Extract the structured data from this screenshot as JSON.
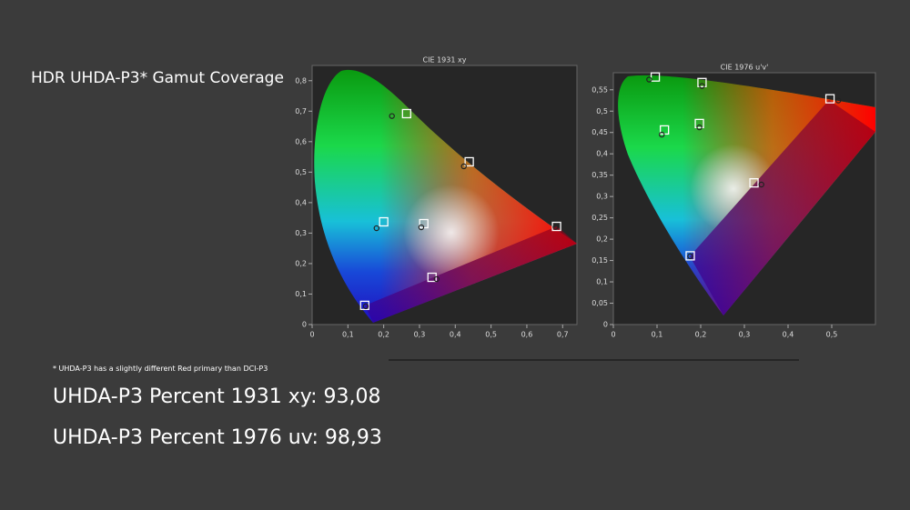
{
  "title": "HDR UHDA-P3* Gamut Coverage",
  "footnote": "* UHDA-P3 has a slightly different Red primary than DCI-P3",
  "results": [
    "UHDA-P3 Percent 1931 xy: 93,08",
    "UHDA-P3 Percent 1976 uv: 98,93"
  ],
  "chart_data": [
    {
      "type": "scatter",
      "title": "CIE 1931 xy",
      "xlim": [
        0,
        0.74
      ],
      "ylim": [
        0,
        0.85
      ],
      "xticks": [
        0,
        {
          "value": 0.1,
          "label": "0,1"
        },
        {
          "value": 0.2,
          "label": "0,2"
        },
        {
          "value": 0.3,
          "label": "0,3"
        },
        {
          "value": 0.4,
          "label": "0,4"
        },
        {
          "value": 0.5,
          "label": "0,5"
        },
        {
          "value": 0.6,
          "label": "0,6"
        },
        {
          "value": 0.7,
          "label": "0,7"
        }
      ],
      "yticks": [
        0,
        {
          "value": 0.1,
          "label": "0,1"
        },
        {
          "value": 0.2,
          "label": "0,2"
        },
        {
          "value": 0.3,
          "label": "0,3"
        },
        {
          "value": 0.4,
          "label": "0,4"
        },
        {
          "value": 0.5,
          "label": "0,5"
        },
        {
          "value": 0.6,
          "label": "0,6"
        },
        {
          "value": 0.7,
          "label": "0,7"
        },
        {
          "value": 0.8,
          "label": "0,8"
        }
      ],
      "series": [
        {
          "marker": "square",
          "color": "#ffffff",
          "x": [
            0.264,
            0.439,
            0.312,
            0.2,
            0.683,
            0.335,
            0.147
          ],
          "y": [
            0.692,
            0.534,
            0.331,
            0.337,
            0.322,
            0.155,
            0.063
          ]
        },
        {
          "marker": "circle",
          "color": "#222222",
          "x": [
            0.223,
            0.424,
            0.305,
            0.18,
            0.68,
            0.348,
            0.15
          ],
          "y": [
            0.684,
            0.519,
            0.319,
            0.316,
            0.32,
            0.149,
            0.06
          ]
        }
      ]
    },
    {
      "type": "scatter",
      "title": "CIE 1976 u'v'",
      "xlim": [
        0,
        0.6
      ],
      "ylim": [
        0,
        0.59
      ],
      "xticks": [
        0,
        {
          "value": 0.1,
          "label": "0,1"
        },
        {
          "value": 0.2,
          "label": "0,2"
        },
        {
          "value": 0.3,
          "label": "0,3"
        },
        {
          "value": 0.4,
          "label": "0,4"
        },
        {
          "value": 0.5,
          "label": "0,5"
        }
      ],
      "yticks": [
        0,
        {
          "value": 0.05,
          "label": "0,05"
        },
        {
          "value": 0.1,
          "label": "0,1"
        },
        {
          "value": 0.15,
          "label": "0,15"
        },
        {
          "value": 0.2,
          "label": "0,2"
        },
        {
          "value": 0.25,
          "label": "0,25"
        },
        {
          "value": 0.3,
          "label": "0,3"
        },
        {
          "value": 0.35,
          "label": "0,35"
        },
        {
          "value": 0.4,
          "label": "0,4"
        },
        {
          "value": 0.45,
          "label": "0,45"
        },
        {
          "value": 0.5,
          "label": "0,5"
        },
        {
          "value": 0.55,
          "label": "0,55"
        }
      ],
      "series": [
        {
          "marker": "square",
          "color": "#ffffff",
          "x": [
            0.096,
            0.203,
            0.197,
            0.117,
            0.496,
            0.322,
            0.176
          ],
          "y": [
            0.58,
            0.567,
            0.471,
            0.456,
            0.529,
            0.332,
            0.161
          ]
        },
        {
          "marker": "circle",
          "color": "#222222",
          "x": [
            0.082,
            0.203,
            0.197,
            0.111,
            0.515,
            0.339,
            0.176
          ],
          "y": [
            0.574,
            0.559,
            0.462,
            0.445,
            0.525,
            0.328,
            0.16
          ]
        }
      ]
    }
  ]
}
